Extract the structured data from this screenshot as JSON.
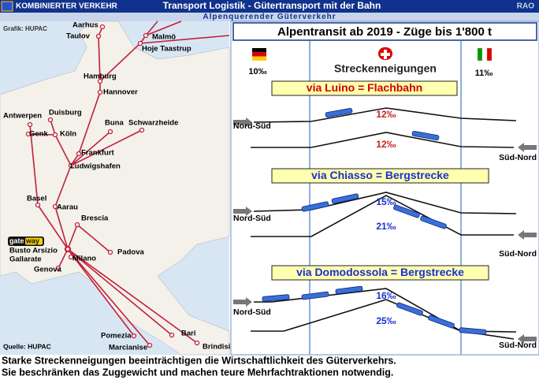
{
  "header": {
    "left": "KOMBINIERTER VERKEHR",
    "title": "Transport Logistik - Gütertransport mit der Bahn",
    "right": "RAO",
    "subtitle": "Alpenquerender Güterverkehr"
  },
  "map": {
    "credit": "Grafik: HUPAC",
    "source": "Quelle: HUPAC",
    "logo": [
      "gate",
      "way"
    ],
    "cities": [
      "Aarhus",
      "Taulov",
      "Malmö",
      "Hoje Taastrup",
      "Hamburg",
      "Hannover",
      "Antwerpen",
      "Duisburg",
      "Genk",
      "Köln",
      "Buna",
      "Schwarzheide",
      "Frankfurt",
      "Ludwigshafen",
      "Basel",
      "Aarau",
      "Brescia",
      "Busto Arsizio",
      "Gallarate",
      "Padova",
      "Milano",
      "Genova",
      "Pomezia",
      "Bari",
      "Marcianise",
      "Brindisi"
    ]
  },
  "panel": {
    "title": "Alpentransit ab 2019 - Züge bis 1'800 t",
    "left_gradient": "10‰",
    "center_label": "Streckenneigungen",
    "right_gradient": "11‰",
    "routes": [
      {
        "label": "via Luino = Flachbahn",
        "north_south": "Nord-Süd",
        "south_north": "Süd-Nord",
        "gradient_ns": "12‰",
        "gradient_sn": "12‰"
      },
      {
        "label": "via Chiasso = Bergstrecke",
        "north_south": "Nord-Süd",
        "south_north": "Süd-Nord",
        "gradient_ns": "15‰",
        "gradient_sn": "21‰"
      },
      {
        "label": "via Domodossola = Bergstrecke",
        "north_south": "Nord-Süd",
        "south_north": "Süd-Nord",
        "gradient_ns": "16‰",
        "gradient_sn": "25‰"
      }
    ]
  },
  "caption": [
    "Starke Streckenneigungen beeinträchtigen die Wirtschaftlichkeit des Güterverkehrs.",
    "Sie beschränken das Zuggewicht und machen teure Mehrfachtraktionen notwendig."
  ]
}
